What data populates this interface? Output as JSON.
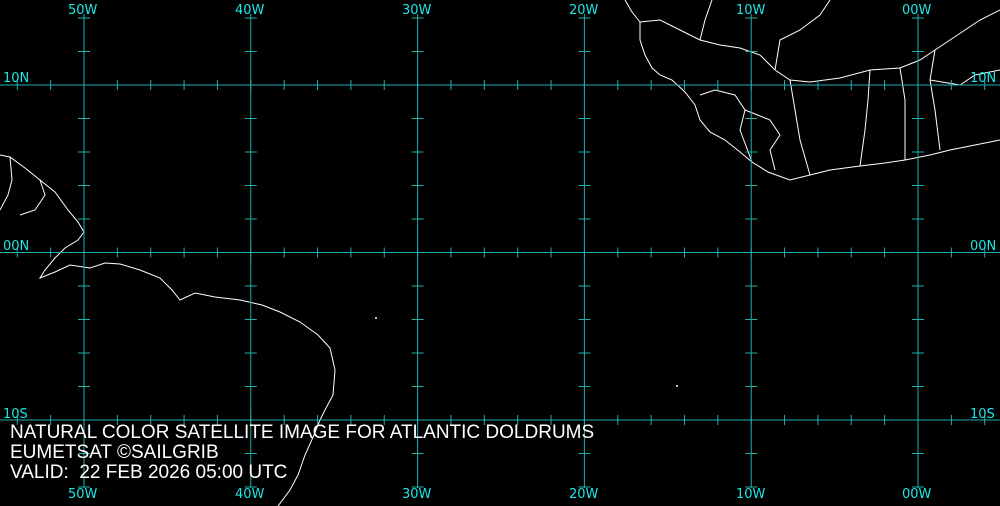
{
  "map": {
    "longitude_labels": [
      "50W",
      "40W",
      "30W",
      "20W",
      "10W",
      "00W"
    ],
    "latitude_labels": [
      "10N",
      "00N",
      "10S"
    ],
    "grid_color": "#1fb0b0",
    "label_color": "#1ee6e6",
    "coastline_color": "#ffffff",
    "background": "#000000"
  },
  "caption": {
    "title": "NATURAL COLOR SATELLITE IMAGE FOR ATLANTIC DOLDRUMS",
    "credit": "EUMETSAT ©SAILGRIB",
    "valid": "VALID:  22 FEB 2026 05:00 UTC"
  }
}
